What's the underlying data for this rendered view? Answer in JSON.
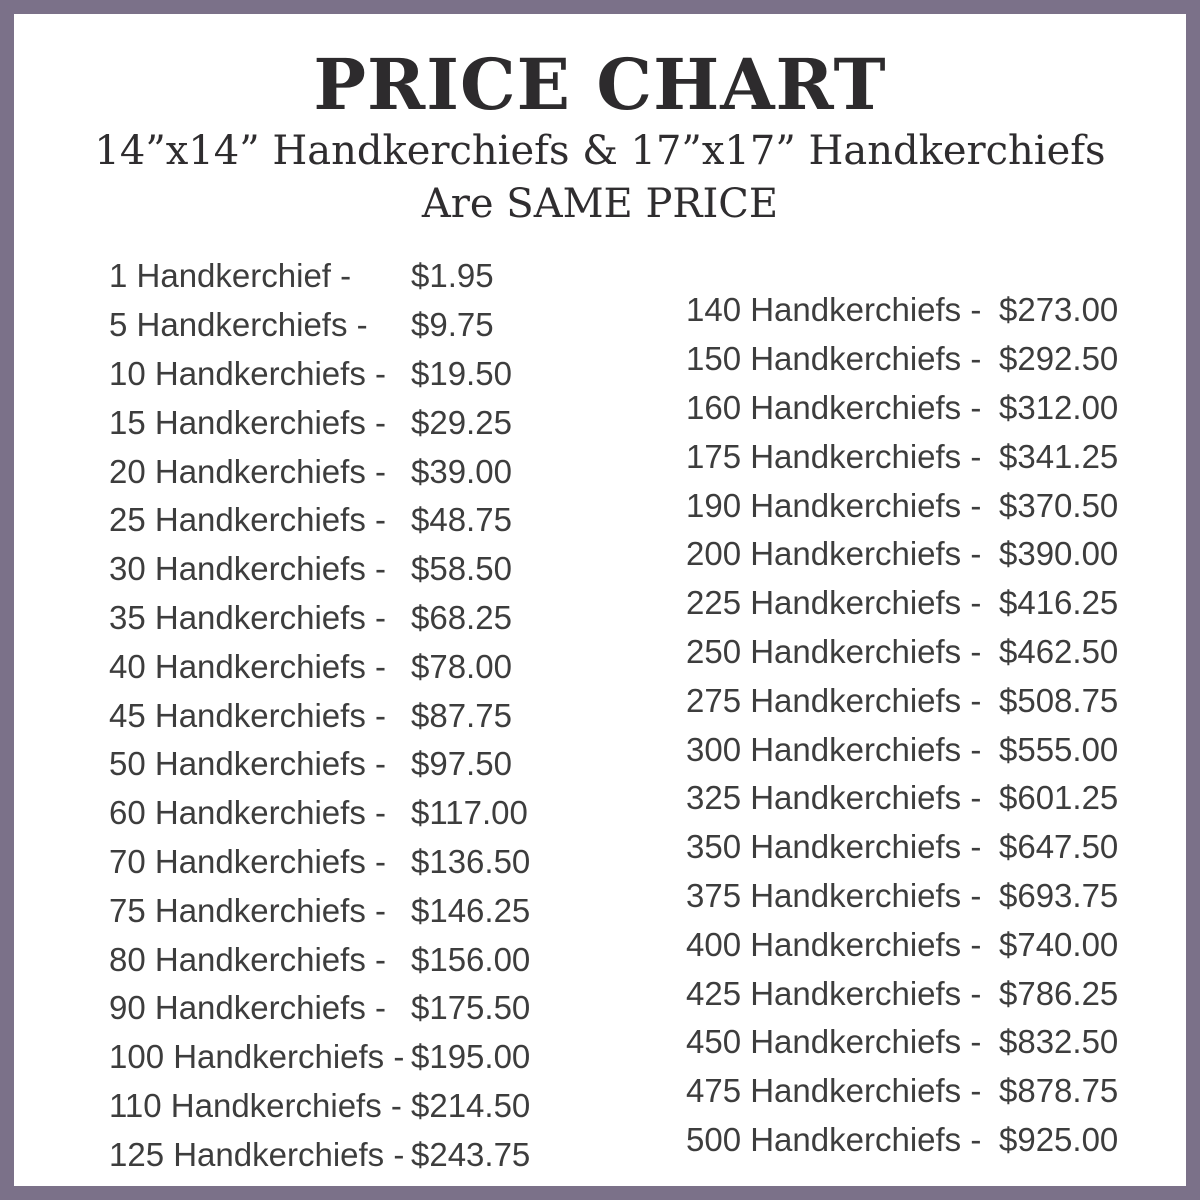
{
  "header": {
    "title": "PRICE CHART",
    "subtitle_line1": "14”x14” Handkerchiefs & 17”x17” Handkerchiefs",
    "subtitle_line2": "Are SAME PRICE"
  },
  "price_table": {
    "columns": {
      "left": [
        {
          "label": "1 Handkerchief -",
          "price": "$1.95"
        },
        {
          "label": "5 Handkerchiefs -",
          "price": "$9.75"
        },
        {
          "label": "10 Handkerchiefs -",
          "price": "$19.50"
        },
        {
          "label": "15 Handkerchiefs -",
          "price": "$29.25"
        },
        {
          "label": "20 Handkerchiefs -",
          "price": "$39.00"
        },
        {
          "label": "25 Handkerchiefs -",
          "price": "$48.75"
        },
        {
          "label": "30 Handkerchiefs -",
          "price": "$58.50"
        },
        {
          "label": "35 Handkerchiefs -",
          "price": "$68.25"
        },
        {
          "label": "40 Handkerchiefs -",
          "price": "$78.00"
        },
        {
          "label": "45 Handkerchiefs -",
          "price": "$87.75"
        },
        {
          "label": "50 Handkerchiefs -",
          "price": "$97.50"
        },
        {
          "label": "60 Handkerchiefs -",
          "price": "$117.00"
        },
        {
          "label": "70 Handkerchiefs -",
          "price": "$136.50"
        },
        {
          "label": "75 Handkerchiefs -",
          "price": "$146.25"
        },
        {
          "label": "80 Handkerchiefs -",
          "price": "$156.00"
        },
        {
          "label": "90 Handkerchiefs -",
          "price": "$175.50"
        },
        {
          "label": "100 Handkerchiefs -",
          "price": "$195.00"
        },
        {
          "label": "110 Handkerchiefs -",
          "price": "$214.50"
        },
        {
          "label": "125 Handkerchiefs -",
          "price": "$243.75"
        }
      ],
      "right": [
        {
          "label": "140 Handkerchiefs -",
          "price": "$273.00"
        },
        {
          "label": "150 Handkerchiefs -",
          "price": "$292.50"
        },
        {
          "label": "160 Handkerchiefs -",
          "price": "$312.00"
        },
        {
          "label": "175 Handkerchiefs -",
          "price": "$341.25"
        },
        {
          "label": "190 Handkerchiefs -",
          "price": "$370.50"
        },
        {
          "label": "200 Handkerchiefs -",
          "price": "$390.00"
        },
        {
          "label": "225 Handkerchiefs -",
          "price": "$416.25"
        },
        {
          "label": "250 Handkerchiefs -",
          "price": "$462.50"
        },
        {
          "label": "275 Handkerchiefs -",
          "price": "$508.75"
        },
        {
          "label": "300 Handkerchiefs -",
          "price": "$555.00"
        },
        {
          "label": "325 Handkerchiefs -",
          "price": "$601.25"
        },
        {
          "label": "350 Handkerchiefs -",
          "price": "$647.50"
        },
        {
          "label": "375 Handkerchiefs -",
          "price": "$693.75"
        },
        {
          "label": "400 Handkerchiefs -",
          "price": "$740.00"
        },
        {
          "label": "425 Handkerchiefs -",
          "price": "$786.25"
        },
        {
          "label": "450 Handkerchiefs -",
          "price": "$832.50"
        },
        {
          "label": "475 Handkerchiefs -",
          "price": "$878.75"
        },
        {
          "label": "500 Handkerchiefs -",
          "price": "$925.00"
        }
      ]
    }
  },
  "colors": {
    "border": "#7b7189",
    "title_text": "#2d2b2d",
    "subtitle_text": "#2f2d2f",
    "body_text": "#3d3d3d",
    "background": "#ffffff"
  }
}
